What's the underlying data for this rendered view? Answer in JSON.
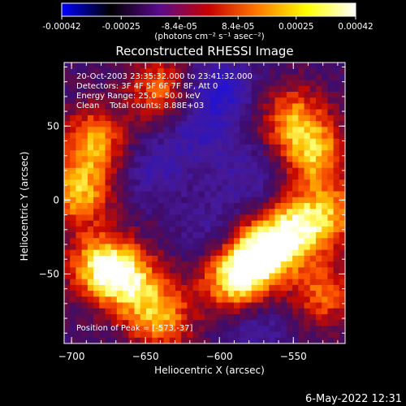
{
  "colorbar": {
    "tick_labels": [
      "-0.00042",
      "-0.00025",
      "-8.4e-05",
      "8.4e-05",
      "0.00025",
      "0.00042"
    ],
    "tick_values": [
      -0.00042,
      -0.00025,
      -8.4e-05,
      8.4e-05,
      0.00025,
      0.00042
    ],
    "range": [
      -0.00042,
      0.00042
    ],
    "unit_label": "(photons cm⁻² s⁻¹ asec⁻²)",
    "colors": [
      "#0000ff",
      "#000000",
      "#5a0a8c",
      "#c80000",
      "#ff7a00",
      "#ffff00",
      "#ffffff"
    ]
  },
  "chart_data": {
    "type": "heatmap",
    "title": "Reconstructed RHESSI Image",
    "xlabel": "Heliocentric X (arcsec)",
    "ylabel": "Heliocentric Y (arcsec)",
    "xlim": [
      -705,
      -515
    ],
    "ylim": [
      -97,
      93
    ],
    "x_ticks": [
      -700,
      -650,
      -600,
      -550
    ],
    "y_ticks": [
      -50,
      0,
      50
    ],
    "x_tick_labels": [
      "−700",
      "−650",
      "−600",
      "−550"
    ],
    "y_tick_labels": [
      "−50",
      "0",
      "50"
    ],
    "grid": false,
    "peak_position": [
      -573,
      -37
    ],
    "annotations": [
      "20-Oct-2003 23:35:32.000 to 23:41:32.000",
      "Detectors: 3F 4F 5F 6F 7F 8F, Att 0",
      "Energy Range: 25.0 - 50.0 keV",
      "Clean    Total counts: 8.88E+03"
    ],
    "peak_label": "Position of Peak = [-573,-37]",
    "hot_regions": [
      {
        "x": -573,
        "y": -37,
        "level": 1.0
      },
      {
        "x": -590,
        "y": -55,
        "level": 0.85
      },
      {
        "x": -680,
        "y": -45,
        "level": 0.85
      },
      {
        "x": -660,
        "y": -55,
        "level": 0.7
      },
      {
        "x": -640,
        "y": -80,
        "level": 0.7
      },
      {
        "x": -695,
        "y": 5,
        "level": 0.75
      },
      {
        "x": -685,
        "y": 40,
        "level": 0.7
      },
      {
        "x": -640,
        "y": 75,
        "level": 0.6
      },
      {
        "x": -550,
        "y": 55,
        "level": 0.65
      },
      {
        "x": -535,
        "y": 30,
        "level": 0.7
      },
      {
        "x": -525,
        "y": -10,
        "level": 0.6
      },
      {
        "x": -550,
        "y": -20,
        "level": 0.8
      },
      {
        "x": -530,
        "y": -65,
        "level": 0.55
      }
    ],
    "cold_regions": [
      {
        "x": -600,
        "y": 75,
        "level": -0.55
      },
      {
        "x": -615,
        "y": 45,
        "level": -0.35
      },
      {
        "x": -645,
        "y": 20,
        "level": -0.3
      },
      {
        "x": -580,
        "y": 15,
        "level": -0.3
      },
      {
        "x": -605,
        "y": -20,
        "level": -0.25
      },
      {
        "x": -575,
        "y": -85,
        "level": -0.3
      }
    ]
  },
  "timestamp": "6-May-2022 12:31"
}
